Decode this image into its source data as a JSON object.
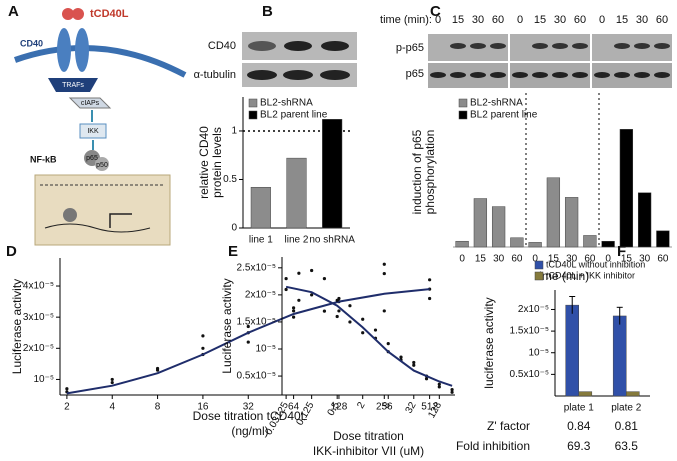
{
  "diagram": {
    "panel": "A",
    "ligand": "tCD40L",
    "receptor": "CD40",
    "trafs": "TRAFs",
    "ciaps": "cIAPs",
    "ikk": "IKK",
    "nfkb": "NF-kB",
    "p65": "p65",
    "p50": "p50"
  },
  "blot_b": {
    "labels": [
      "CD40",
      "α-tubulin"
    ]
  },
  "blot_c": {
    "time_label": "time (min):",
    "times": [
      0,
      15,
      30,
      60,
      0,
      15,
      30,
      60,
      0,
      15,
      30,
      60
    ],
    "labels": [
      "p-p65",
      "p65"
    ]
  },
  "chart_data": [
    {
      "type": "bar",
      "panel": "B",
      "ylabel": [
        "relative CD40",
        "protein levels"
      ],
      "categories": [
        "line 1",
        "line 2",
        "no shRNA"
      ],
      "series": [
        {
          "name": "BL2-shRNA",
          "color": "#8c8c8c",
          "values": [
            0.42,
            0.72,
            null
          ]
        },
        {
          "name": "BL2 parent line",
          "color": "#000000",
          "values": [
            null,
            null,
            1.12
          ]
        }
      ],
      "ylim": [
        0,
        1.35
      ],
      "yticks": [
        0,
        0.5,
        1
      ],
      "reference_line": 1
    },
    {
      "type": "bar",
      "panel": "C",
      "ylabel": [
        "induction of p65",
        "phosphorylation"
      ],
      "xlabel": "time (min)",
      "categories": [
        0,
        15,
        30,
        60,
        0,
        15,
        30,
        60,
        0,
        15,
        30,
        60
      ],
      "series": [
        {
          "name": "BL2-shRNA",
          "color": "#8c8c8c",
          "values": [
            0.05,
            0.42,
            0.35,
            0.08,
            0.04,
            0.6,
            0.43,
            0.1,
            null,
            null,
            null,
            null
          ]
        },
        {
          "name": "BL2 parent line",
          "color": "#000000",
          "values": [
            null,
            null,
            null,
            null,
            null,
            null,
            null,
            null,
            0.05,
            1.02,
            0.47,
            0.14
          ]
        }
      ],
      "ylim": [
        0,
        1.3
      ]
    },
    {
      "type": "scatter",
      "panel": "D",
      "ylabel": "Luciferase activity",
      "xlabel": [
        "Dose titration tCD40L",
        "(ng/ml)"
      ],
      "xscale": "log",
      "x": [
        2,
        2,
        4,
        4,
        8,
        8,
        16,
        16,
        16,
        32,
        32,
        32,
        64,
        64,
        64,
        128,
        128,
        128,
        256,
        256,
        256,
        512,
        512,
        512
      ],
      "values": [
        6e-06,
        7e-06,
        9e-06,
        1e-05,
        1.3e-05,
        1.35e-05,
        1.8e-05,
        2e-05,
        2.4e-05,
        2.2e-05,
        2.5e-05,
        2.7e-05,
        3e-05,
        3.3e-05,
        3.2e-05,
        3.5e-05,
        3.6e-05,
        3.2e-05,
        4.7e-05,
        4.4e-05,
        3.2e-05,
        4.2e-05,
        3.9e-05,
        3.6e-05
      ],
      "fit": {
        "color": "#1f2d6b",
        "x": [
          2,
          4,
          8,
          16,
          32,
          64,
          128,
          256,
          512
        ],
        "values": [
          5.5e-06,
          8e-06,
          1.2e-05,
          1.8e-05,
          2.5e-05,
          3.1e-05,
          3.5e-05,
          3.75e-05,
          3.9e-05
        ]
      },
      "xlim": [
        1.8,
        600
      ],
      "xticks": [
        2,
        4,
        8,
        16,
        32,
        64,
        128,
        256,
        512
      ],
      "ylim": [
        5e-06,
        4.9e-05
      ],
      "yticks": [
        {
          "value": 1e-05,
          "label": "10⁻⁵"
        },
        {
          "value": 2e-05,
          "label": "2x10⁻⁵"
        },
        {
          "value": 3e-05,
          "label": "3x10⁻⁵"
        },
        {
          "value": 4e-05,
          "label": "4x10⁻⁵"
        }
      ]
    },
    {
      "type": "scatter",
      "panel": "E",
      "ylabel": "Luciferase activity",
      "xlabel": [
        "Dose titration",
        "IKK-inhibitor VII (uM)"
      ],
      "xscale": "log",
      "x": [
        0.03125,
        0.03125,
        0.0625,
        0.0625,
        0.125,
        0.125,
        0.25,
        0.25,
        0.5,
        0.5,
        1,
        1,
        2,
        2,
        4,
        4,
        8,
        8,
        16,
        16,
        32,
        32,
        64,
        64,
        128,
        128,
        256,
        256
      ],
      "values": [
        2.1e-05,
        2.3e-05,
        2.4e-05,
        1.9e-05,
        2.45e-05,
        2e-05,
        2.3e-05,
        1.7e-05,
        1.9e-05,
        1.6e-05,
        1.8e-05,
        1.5e-05,
        1.55e-05,
        1.3e-05,
        1.35e-05,
        1.2e-05,
        1.1e-05,
        9.5e-06,
        8.5e-06,
        8e-06,
        7.5e-06,
        7e-06,
        5e-06,
        4.5e-06,
        3.5e-06,
        3e-06,
        2.5e-06,
        2e-06
      ],
      "fit": {
        "color": "#1f2d6b",
        "x": [
          0.03125,
          0.125,
          0.5,
          2,
          8,
          32,
          128,
          256
        ],
        "values": [
          2.15e-05,
          2.05e-05,
          1.8e-05,
          1.4e-05,
          9.5e-06,
          6e-06,
          4e-06,
          3.2e-06
        ]
      },
      "xlim": [
        0.025,
        300
      ],
      "xticks": [
        0.03125,
        0.125,
        0.5,
        2,
        8,
        32,
        128
      ],
      "ylim": [
        1.5e-06,
        2.7e-05
      ],
      "yticks": [
        {
          "value": 5e-06,
          "label": "0.5x10⁻⁵"
        },
        {
          "value": 1e-05,
          "label": "10⁻⁵"
        },
        {
          "value": 1.5e-05,
          "label": "1.5x10⁻⁵"
        },
        {
          "value": 2e-05,
          "label": "2x10⁻⁵"
        },
        {
          "value": 2.5e-05,
          "label": "2.5x10⁻⁵"
        }
      ]
    },
    {
      "type": "bar",
      "panel": "F",
      "ylabel": "luciferase activity",
      "categories": [
        "plate 1",
        "plate 2"
      ],
      "series": [
        {
          "name": "tCD40L without inhibition",
          "color": "#3050a8",
          "values": [
            2.1e-05,
            1.85e-05
          ],
          "errors": [
            2e-06,
            2e-06
          ]
        },
        {
          "name": "tCD40L + IKK inhibitor",
          "color": "#857a3c",
          "values": [
            1e-06,
            1e-06
          ]
        }
      ],
      "ylim": [
        0,
        2.45e-05
      ],
      "yticks": [
        {
          "value": 5e-06,
          "label": "0.5x10⁻⁵"
        },
        {
          "value": 1e-05,
          "label": "10⁻⁵"
        },
        {
          "value": 1.5e-05,
          "label": "1.5x10⁻⁵"
        },
        {
          "value": 2e-05,
          "label": "2x10⁻⁵"
        }
      ],
      "table": {
        "rows": [
          [
            "Z' factor",
            0.84,
            0.81
          ],
          [
            "Fold inhibition",
            69.3,
            63.5
          ]
        ]
      }
    }
  ]
}
